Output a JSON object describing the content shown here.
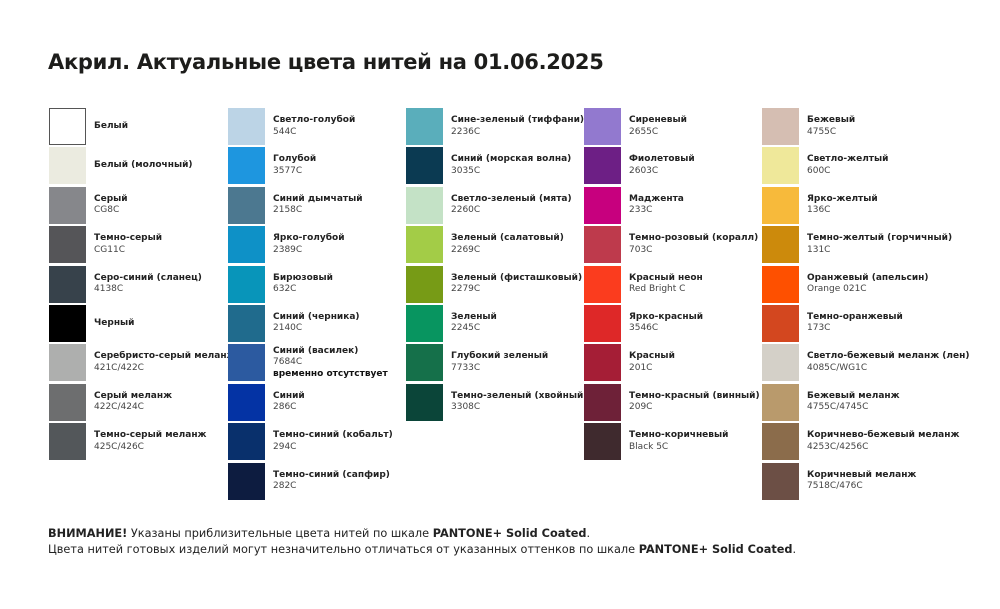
{
  "title": "Акрил. Актуальные цвета нитей на 01.06.2025",
  "columns": [
    [
      {
        "name": "Белый",
        "code": "",
        "color": "#ffffff",
        "border": "#555555"
      },
      {
        "name": "Белый (молочный)",
        "code": "",
        "color": "#ebebe0"
      },
      {
        "name": "Серый",
        "code": "CG8C",
        "color": "#86878b"
      },
      {
        "name": "Темно-серый",
        "code": "CG11C",
        "color": "#555558"
      },
      {
        "name": "Серо-синий (сланец)",
        "code": "4138C",
        "color": "#37424b"
      },
      {
        "name": "Черный",
        "code": "",
        "color": "#000000"
      },
      {
        "name": "Серебристо-серый меланж",
        "code": "421C/422C",
        "color": "#aeafae"
      },
      {
        "name": "Серый меланж",
        "code": "422C/424C",
        "color": "#6d6e6f"
      },
      {
        "name": "Темно-серый меланж",
        "code": "425C/426C",
        "color": "#53575a"
      }
    ],
    [
      {
        "name": "Светло-голубой",
        "code": "544C",
        "color": "#bcd4e6"
      },
      {
        "name": "Голубой",
        "code": "3577C",
        "color": "#1e96df"
      },
      {
        "name": "Синий дымчатый",
        "code": "2158C",
        "color": "#4c7890"
      },
      {
        "name": "Ярко-голубой",
        "code": "2389C",
        "color": "#0e91c7"
      },
      {
        "name": "Бирюзовый",
        "code": "632C",
        "color": "#0895ba"
      },
      {
        "name": "Синий (черника)",
        "code": "2140C",
        "color": "#206b8d"
      },
      {
        "name": "Синий (василек)",
        "code": "7684C",
        "note": "временно отсутствует",
        "color": "#2c5aa0"
      },
      {
        "name": "Синий",
        "code": "286C",
        "color": "#0433a4"
      },
      {
        "name": "Темно-синий (кобальт)",
        "code": "294C",
        "color": "#09306c"
      },
      {
        "name": "Темно-синий (сапфир)",
        "code": "282C",
        "color": "#0d1c40"
      }
    ],
    [
      {
        "name": "Сине-зеленый (тиффани)",
        "code": "2236C",
        "color": "#5aaebb"
      },
      {
        "name": "Синий (морская волна)",
        "code": "3035C",
        "color": "#0b3a52"
      },
      {
        "name": "Светло-зеленый (мята)",
        "code": "2260C",
        "color": "#c4e2c6"
      },
      {
        "name": "Зеленый (салатовый)",
        "code": "2269C",
        "color": "#a3cc47"
      },
      {
        "name": "Зеленый (фисташковый)",
        "code": "2279C",
        "color": "#779b16"
      },
      {
        "name": "Зеленый",
        "code": "2245C",
        "color": "#089560"
      },
      {
        "name": "Глубокий зеленый",
        "code": "7733C",
        "color": "#15704a"
      },
      {
        "name": "Темно-зеленый (хвойный)",
        "code": "3308C",
        "color": "#0b4539"
      }
    ],
    [
      {
        "name": "Сиреневый",
        "code": "2655C",
        "color": "#9279cf"
      },
      {
        "name": "Фиолетовый",
        "code": "2603C",
        "color": "#6d1f85"
      },
      {
        "name": "Маджента",
        "code": "233C",
        "color": "#c7007e"
      },
      {
        "name": "Темно-розовый (коралл)",
        "code": "703C",
        "color": "#be3a4c"
      },
      {
        "name": "Красный неон",
        "code": "Red Bright C",
        "color": "#fb3c1e"
      },
      {
        "name": "Ярко-красный",
        "code": "3546C",
        "color": "#de2828"
      },
      {
        "name": "Красный",
        "code": "201C",
        "color": "#a51e36"
      },
      {
        "name": "Темно-красный (винный)",
        "code": "209C",
        "color": "#6e2138"
      },
      {
        "name": "Темно-коричневый",
        "code": "Black 5C",
        "color": "#3f2a2e"
      }
    ],
    [
      {
        "name": "Бежевый",
        "code": "4755C",
        "color": "#d5beb2"
      },
      {
        "name": "Светло-желтый",
        "code": "600C",
        "color": "#efe89a"
      },
      {
        "name": "Ярко-желтый",
        "code": "136C",
        "color": "#f7ba3b"
      },
      {
        "name": "Темно-желтый (горчичный)",
        "code": "131C",
        "color": "#cc8a0c"
      },
      {
        "name": "Оранжевый (апельсин)",
        "code": "Orange 021C",
        "color": "#fe5000"
      },
      {
        "name": "Темно-оранжевый",
        "code": "173C",
        "color": "#d3471f"
      },
      {
        "name": "Светло-бежевый меланж (лен)",
        "code": "4085C/WG1C",
        "color": "#d4d0c8"
      },
      {
        "name": "Бежевый меланж",
        "code": "4755C/4745C",
        "color": "#b99a6c"
      },
      {
        "name": "Коричнево-бежевый меланж",
        "code": "4253C/4256C",
        "color": "#8b6c4b"
      },
      {
        "name": "Коричневый меланж",
        "code": "7518C/476C",
        "color": "#6c4f45"
      }
    ]
  ],
  "footer": {
    "line1_bold": "ВНИМАНИЕ!",
    "line1_text": " Указаны приблизительные цвета нитей по шкале ",
    "line1_pantone": "PANTONE+ Solid Coated",
    "line1_end": ".",
    "line2_text": "Цвета нитей готовых изделий могут незначительно отличаться от указанных оттенков по шкале ",
    "line2_pantone": "PANTONE+ Solid Coated",
    "line2_end": "."
  }
}
